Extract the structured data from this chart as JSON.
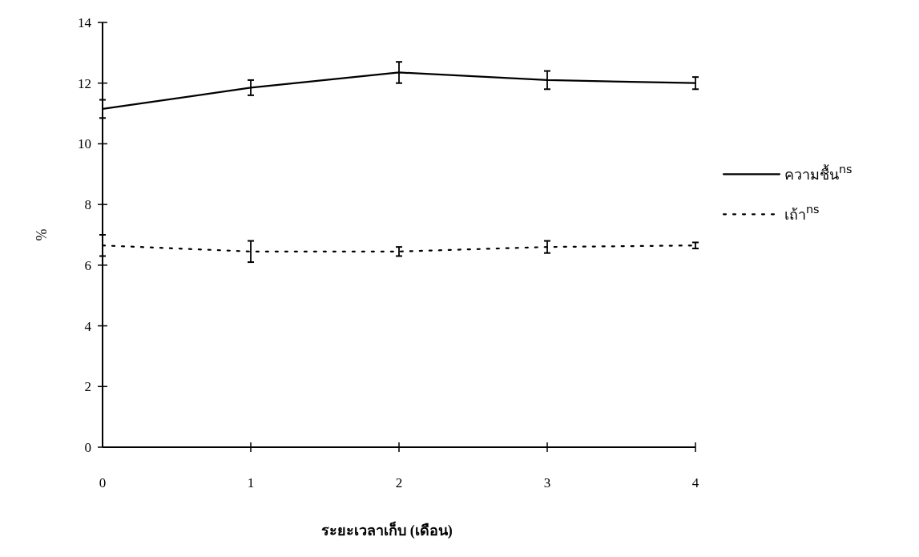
{
  "chart_data": {
    "type": "line",
    "xlabel": "ระยะเวลาเก็บ (เดือน)",
    "ylabel": "%",
    "x": [
      0,
      1,
      2,
      3,
      4
    ],
    "xlim": [
      0,
      4
    ],
    "xticks": [
      0,
      1,
      2,
      3,
      4
    ],
    "ylim": [
      0,
      14
    ],
    "yticks": [
      0,
      2,
      4,
      6,
      8,
      10,
      12,
      14
    ],
    "legend": "right",
    "marker": "none",
    "grid": false,
    "series": [
      {
        "name": "ความชื้น$^{ns}$",
        "color": "#000000",
        "line_style": "solid",
        "values": [
          11.15,
          11.85,
          12.35,
          12.1,
          12.0
        ],
        "errors": [
          0.3,
          0.25,
          0.35,
          0.3,
          0.2
        ]
      },
      {
        "name": "เถ้า$^{ns}$",
        "color": "#000000",
        "line_style": "dotted",
        "values": [
          6.65,
          6.45,
          6.45,
          6.6,
          6.65
        ],
        "errors": [
          0.35,
          0.35,
          0.15,
          0.2,
          0.1
        ]
      }
    ]
  }
}
